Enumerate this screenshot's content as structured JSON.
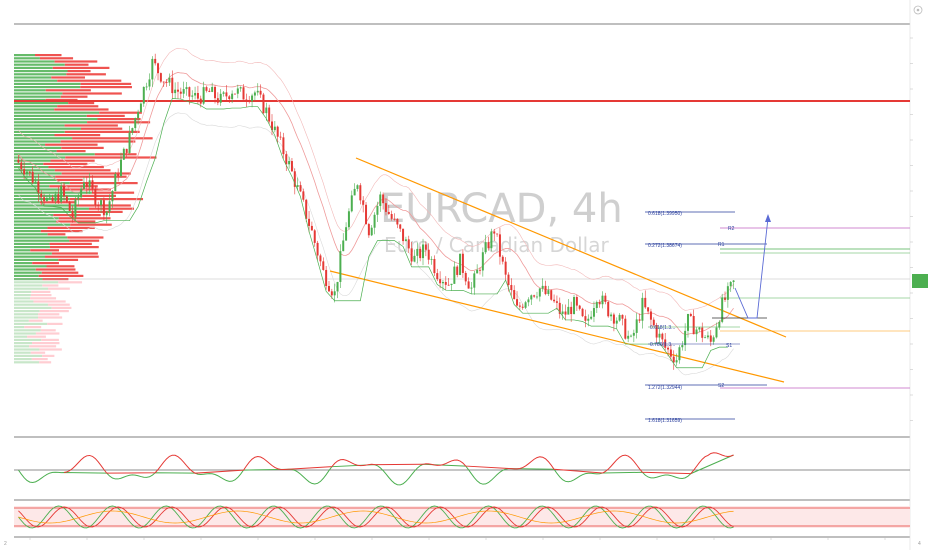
{
  "watermark": {
    "symbol": "EURCAD, 4h",
    "description": "Euro / Canadian Dollar"
  },
  "colors": {
    "bull": "#4caf50",
    "bear": "#e53935",
    "channel": "#ff9800",
    "resistance": "#e53935",
    "fib": "#2a3f9d",
    "projection": "#5b6bd5",
    "rsi": "#4caf50",
    "rsi_down": "#e53935",
    "stoch_k": "#4caf50",
    "stoch_d": "#e53935",
    "price_tag": "#4caf50"
  },
  "fib_levels": [
    {
      "label": "0.618(1.39950)"
    },
    {
      "label": "0.272(1.38674)"
    },
    {
      "label": "1.272(1.32944)"
    },
    {
      "label": "1.618(1.31659)"
    }
  ],
  "small_fib_labels": [
    {
      "label": "0.786(1.3..."
    },
    {
      "label": "0.618(1.3..."
    }
  ],
  "markers": [
    {
      "label": "R2"
    },
    {
      "label": "R1"
    },
    {
      "label": "S1"
    },
    {
      "label": "S2"
    }
  ],
  "corner_labels": {
    "left": "2",
    "right": "4"
  },
  "chart_data": {
    "type": "line",
    "title": "EURCAD, 4h",
    "subtitle": "Euro / Canadian Dollar",
    "series": [
      {
        "name": "EURCAD",
        "values": [
          1.422,
          1.418,
          1.412,
          1.405,
          1.41,
          1.401,
          1.415,
          1.408,
          1.403,
          1.418,
          1.43,
          1.445,
          1.458,
          1.452,
          1.448,
          1.446,
          1.445,
          1.447,
          1.444,
          1.448,
          1.446,
          1.447,
          1.44,
          1.43,
          1.42,
          1.408,
          1.395,
          1.38,
          1.372,
          1.398,
          1.414,
          1.396,
          1.408,
          1.4,
          1.393,
          1.385,
          1.389,
          1.38,
          1.376,
          1.384,
          1.374,
          1.386,
          1.396,
          1.378,
          1.366,
          1.372,
          1.374,
          1.37,
          1.364,
          1.368,
          1.36,
          1.372,
          1.366,
          1.362,
          1.354,
          1.368,
          1.36,
          1.352,
          1.348,
          1.362,
          1.358,
          1.354,
          1.368,
          1.376
        ]
      }
    ]
  }
}
